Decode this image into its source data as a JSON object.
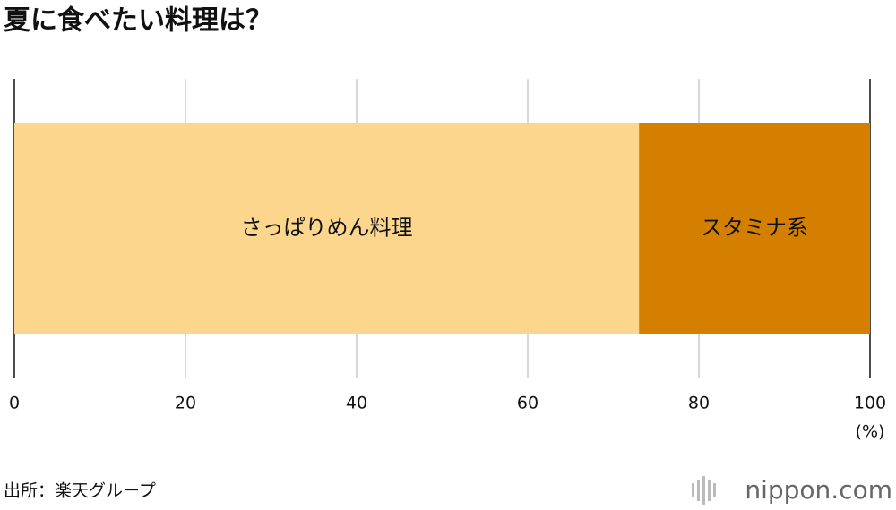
{
  "chart_data": {
    "type": "stacked_bar_horizontal",
    "title": "夏に食べたい料理は？",
    "series": [
      {
        "name": "さっぱりめん料理",
        "color": "#fdd68e",
        "values": [
          73
        ]
      },
      {
        "name": "スタミナ系",
        "color": "#d57f00",
        "values": [
          27
        ]
      }
    ],
    "xlim": [
      0,
      100
    ],
    "xticks": [
      0,
      20,
      40,
      60,
      80,
      100
    ],
    "x_unit": "(%)",
    "grid": true,
    "source": "出所：楽天グループ",
    "logo": "nippon.com"
  }
}
